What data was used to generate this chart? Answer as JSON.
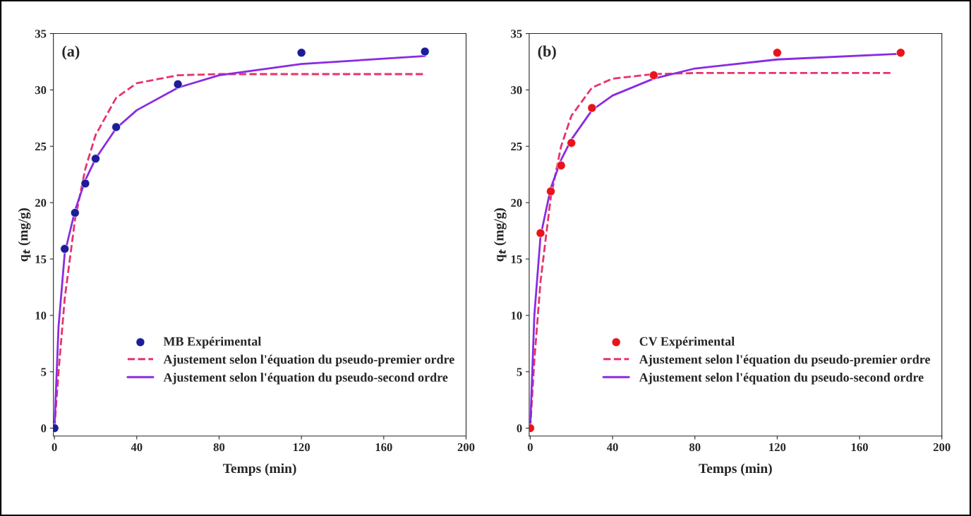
{
  "chart_data": [
    {
      "type": "scatter",
      "ylabel": "q$_{t}$ (mg/g)",
      "xlabel": "Temps (min)",
      "annotations": [
        "(a)"
      ],
      "xlim": [
        -0.5,
        200
      ],
      "xticks": [
        0,
        40,
        80,
        120,
        160,
        200
      ],
      "ylim": [
        -0.7,
        35
      ],
      "yticks": [
        0,
        5,
        10,
        15,
        20,
        25,
        30,
        35
      ],
      "legend": "lower right",
      "grid": false,
      "series": [
        {
          "name": "MB Expérimental",
          "marker": "circle",
          "color": "#1c1c9c",
          "x": [
            0,
            5,
            10,
            15,
            20,
            30,
            60,
            120,
            180
          ],
          "values": [
            0,
            15.9,
            19.1,
            21.7,
            23.9,
            26.7,
            30.5,
            33.3,
            33.4
          ]
        },
        {
          "name": "Ajustement selon l'équation du pseudo-premier ordre",
          "type": "line",
          "line_style": "dashed",
          "color": "#e8336b",
          "x": [
            0,
            2,
            5,
            10,
            15,
            20,
            30,
            40,
            60,
            80,
            120,
            180
          ],
          "values": [
            0,
            5,
            11.5,
            18.5,
            23,
            26,
            29.3,
            30.6,
            31.3,
            31.4,
            31.4,
            31.4
          ]
        },
        {
          "name": "Ajustement selon l'équation du pseudo-second ordre",
          "type": "line",
          "line_style": "solid",
          "color": "#8a2be2",
          "x": [
            0,
            2,
            5,
            10,
            15,
            20,
            30,
            40,
            60,
            80,
            120,
            180
          ],
          "values": [
            0,
            9,
            15.5,
            19.3,
            22,
            23.9,
            26.6,
            28.2,
            30.2,
            31.3,
            32.3,
            33.0
          ]
        }
      ]
    },
    {
      "type": "scatter",
      "ylabel": "q$_{t}$ (mg/g)",
      "xlabel": "Temps (min)",
      "annotations": [
        "(b)"
      ],
      "xlim": [
        -0.5,
        200
      ],
      "xticks": [
        0,
        40,
        80,
        120,
        160,
        200
      ],
      "ylim": [
        -0.7,
        35
      ],
      "yticks": [
        0,
        5,
        10,
        15,
        20,
        25,
        30,
        35
      ],
      "legend": "lower right",
      "grid": false,
      "series": [
        {
          "name": "CV Expérimental",
          "marker": "circle",
          "color": "#e8141a",
          "x": [
            0,
            5,
            10,
            15,
            20,
            30,
            60,
            120,
            180
          ],
          "values": [
            0,
            17.3,
            21.0,
            23.3,
            25.3,
            28.4,
            31.3,
            33.3,
            33.3
          ]
        },
        {
          "name": "Ajustement selon l'équation du pseudo-premier ordre",
          "type": "line",
          "line_style": "dashed",
          "color": "#e8336b",
          "x": [
            0,
            2,
            5,
            10,
            15,
            20,
            30,
            40,
            60,
            80,
            120,
            175
          ],
          "values": [
            0,
            6,
            13,
            20.5,
            25,
            27.7,
            30.2,
            31,
            31.4,
            31.5,
            31.5,
            31.5
          ]
        },
        {
          "name": "Ajustement selon l'équation du pseudo-second ordre",
          "type": "line",
          "line_style": "solid",
          "color": "#8a2be2",
          "x": [
            0,
            2,
            5,
            10,
            15,
            20,
            30,
            40,
            60,
            80,
            120,
            180
          ],
          "values": [
            0,
            10,
            17,
            21.3,
            23.8,
            25.6,
            28.2,
            29.5,
            31.0,
            31.9,
            32.7,
            33.2
          ]
        }
      ]
    }
  ]
}
